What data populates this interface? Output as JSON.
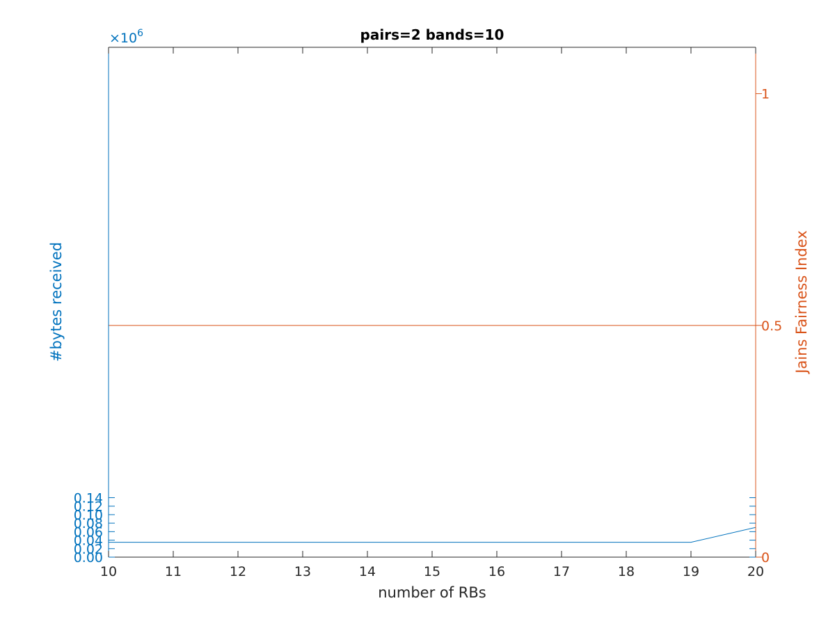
{
  "chart_data": {
    "type": "line",
    "title": "pairs=2 bands=10",
    "xlabel": "number of RBs",
    "ylabel_left": "#bytes received",
    "ylabel_right": "Jains Fairness Index",
    "left_exponent_base": "×10",
    "left_exponent_power": "6",
    "x": [
      10,
      11,
      12,
      13,
      14,
      15,
      16,
      17,
      18,
      19,
      20
    ],
    "xlim": [
      10,
      20
    ],
    "x_ticks": [
      "10",
      "11",
      "12",
      "13",
      "14",
      "15",
      "16",
      "17",
      "18",
      "19",
      "20"
    ],
    "left_ylim": [
      0,
      1.2
    ],
    "left_ticks": [
      0.0,
      0.02,
      0.04,
      0.06,
      0.08,
      0.1,
      0.12,
      0.14
    ],
    "left_tick_labels": [
      "0.00",
      "0.02",
      "0.04",
      "0.06",
      "0.08",
      "0.10",
      "0.12",
      "0.14"
    ],
    "right_ylim": [
      0,
      1.1
    ],
    "right_ticks": [
      0,
      0.5,
      1
    ],
    "right_tick_labels": [
      "0",
      "0.5",
      "1"
    ],
    "series": [
      {
        "axis": "left",
        "color": "#0072BD",
        "values": [
          0.035,
          0.035,
          0.035,
          0.035,
          0.035,
          0.035,
          0.035,
          0.035,
          0.035,
          0.035,
          0.07
        ]
      },
      {
        "axis": "right",
        "color": "#D95319",
        "values": [
          0.5,
          0.5,
          0.5,
          0.5,
          0.5,
          0.5,
          0.5,
          0.5,
          0.5,
          0.5,
          0.5
        ]
      }
    ],
    "grid": false,
    "colors": {
      "left_axis": "#0072BD",
      "right_axis": "#D95319",
      "x_axis": "#262626"
    }
  }
}
